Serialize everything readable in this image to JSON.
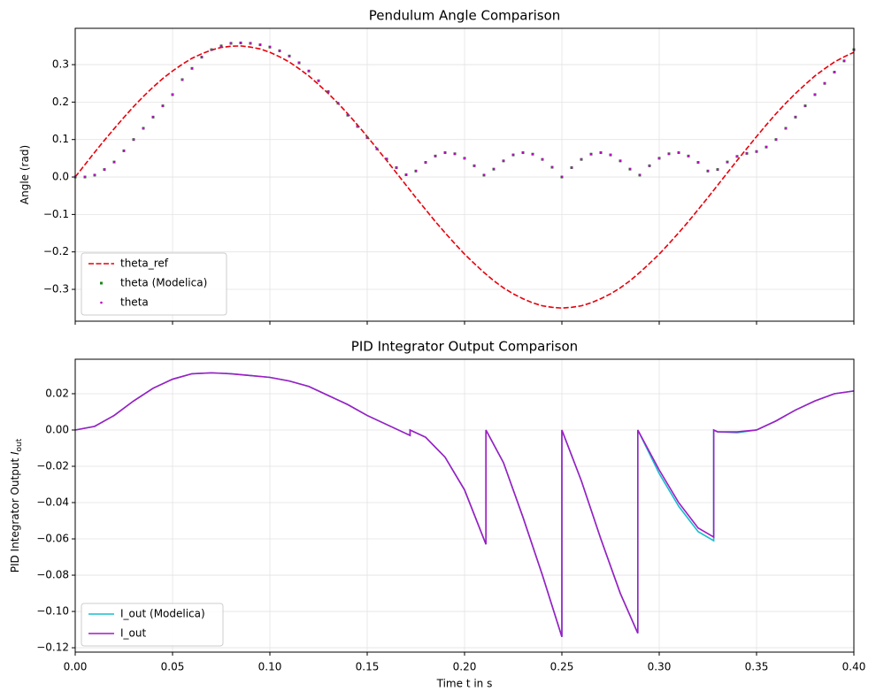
{
  "chart_data": [
    {
      "type": "line",
      "title": "Pendulum Angle Comparison",
      "ylabel": "Angle (rad)",
      "xlim": [
        0,
        0.4
      ],
      "xticks": [
        0,
        0.05,
        0.1,
        0.15,
        0.2,
        0.25,
        0.3,
        0.35,
        0.4
      ],
      "show_xtick_labels": false,
      "ylim": [
        -0.385,
        0.397
      ],
      "yticks": [
        {
          "value": -0.3,
          "label": "−0.3"
        },
        {
          "value": -0.2,
          "label": "−0.2"
        },
        {
          "value": -0.1,
          "label": "−0.1"
        },
        {
          "value": 0,
          "label": "0.0"
        },
        0.1,
        0.2,
        0.3
      ],
      "grid": true,
      "legend": "lower left",
      "x": [
        0,
        0.005,
        0.01,
        0.015,
        0.02,
        0.025,
        0.03,
        0.035,
        0.04,
        0.045,
        0.05,
        0.055,
        0.06,
        0.065,
        0.07,
        0.075,
        0.08,
        0.085,
        0.09,
        0.095,
        0.1,
        0.105,
        0.11,
        0.115,
        0.12,
        0.125,
        0.13,
        0.135,
        0.14,
        0.145,
        0.15,
        0.155,
        0.16,
        0.165,
        0.17,
        0.175,
        0.18,
        0.185,
        0.19,
        0.195,
        0.2,
        0.205,
        0.21,
        0.215,
        0.22,
        0.225,
        0.23,
        0.235,
        0.24,
        0.245,
        0.25,
        0.255,
        0.26,
        0.265,
        0.27,
        0.275,
        0.28,
        0.285,
        0.29,
        0.295,
        0.3,
        0.305,
        0.31,
        0.315,
        0.32,
        0.325,
        0.33,
        0.335,
        0.34,
        0.345,
        0.35,
        0.355,
        0.36,
        0.365,
        0.37,
        0.375,
        0.38,
        0.385,
        0.39,
        0.395,
        0.4
      ],
      "series": [
        {
          "name": "theta_ref",
          "style": "dashed",
          "color": "#e8000b",
          "values": [
            0,
            0.033,
            0.066,
            0.098,
            0.129,
            0.159,
            0.188,
            0.215,
            0.24,
            0.263,
            0.283,
            0.301,
            0.317,
            0.329,
            0.339,
            0.346,
            0.349,
            0.35,
            0.347,
            0.342,
            0.333,
            0.321,
            0.307,
            0.289,
            0.27,
            0.247,
            0.223,
            0.197,
            0.169,
            0.139,
            0.108,
            0.076,
            0.044,
            0.011,
            -0.022,
            -0.055,
            -0.087,
            -0.119,
            -0.149,
            -0.178,
            -0.206,
            -0.231,
            -0.255,
            -0.277,
            -0.296,
            -0.312,
            -0.325,
            -0.336,
            -0.344,
            -0.348,
            -0.35,
            -0.348,
            -0.344,
            -0.336,
            -0.325,
            -0.312,
            -0.296,
            -0.277,
            -0.255,
            -0.231,
            -0.206,
            -0.178,
            -0.149,
            -0.119,
            -0.087,
            -0.055,
            -0.022,
            0.011,
            0.044,
            0.076,
            0.108,
            0.139,
            0.169,
            0.197,
            0.223,
            0.247,
            0.27,
            0.289,
            0.307,
            0.321,
            0.333
          ]
        },
        {
          "name": "theta (Modelica)",
          "style": "square-markers",
          "color": "#1a8a1a",
          "values": [
            0,
            0,
            0.005,
            0.02,
            0.04,
            0.07,
            0.1,
            0.13,
            0.16,
            0.19,
            0.22,
            0.26,
            0.29,
            0.32,
            0.34,
            0.35,
            0.357,
            0.358,
            0.357,
            0.353,
            0.347,
            0.337,
            0.323,
            0.305,
            0.283,
            0.257,
            0.228,
            0.197,
            0.165,
            0.135,
            0.105,
            0.075,
            0.048,
            0.025,
            0.006,
            0.016,
            0.039,
            0.056,
            0.065,
            0.062,
            0.05,
            0.03,
            0.005,
            0.021,
            0.043,
            0.059,
            0.065,
            0.061,
            0.047,
            0.026,
            0,
            0.025,
            0.047,
            0.061,
            0.065,
            0.059,
            0.043,
            0.021,
            0.005,
            0.03,
            0.05,
            0.062,
            0.065,
            0.056,
            0.039,
            0.016,
            0.02,
            0.04,
            0.055,
            0.063,
            0.068,
            0.08,
            0.1,
            0.13,
            0.16,
            0.19,
            0.22,
            0.25,
            0.28,
            0.31,
            0.34
          ]
        },
        {
          "name": "theta",
          "style": "dot-markers",
          "color": "#c000c8",
          "values": [
            0,
            0,
            0.005,
            0.02,
            0.04,
            0.07,
            0.1,
            0.13,
            0.16,
            0.19,
            0.22,
            0.26,
            0.29,
            0.32,
            0.34,
            0.35,
            0.357,
            0.358,
            0.357,
            0.353,
            0.347,
            0.337,
            0.323,
            0.305,
            0.283,
            0.257,
            0.228,
            0.197,
            0.165,
            0.135,
            0.105,
            0.075,
            0.048,
            0.025,
            0.006,
            0.016,
            0.039,
            0.056,
            0.065,
            0.062,
            0.05,
            0.03,
            0.005,
            0.021,
            0.043,
            0.059,
            0.065,
            0.061,
            0.047,
            0.026,
            0,
            0.025,
            0.047,
            0.061,
            0.065,
            0.059,
            0.043,
            0.021,
            0.005,
            0.03,
            0.05,
            0.062,
            0.065,
            0.056,
            0.039,
            0.016,
            0.02,
            0.04,
            0.055,
            0.063,
            0.068,
            0.08,
            0.1,
            0.13,
            0.16,
            0.19,
            0.22,
            0.25,
            0.28,
            0.31,
            0.34
          ]
        }
      ]
    },
    {
      "type": "line",
      "title": "PID Integrator Output Comparison",
      "ylabel": "PID Integrator Output",
      "ylabel_symbol": "I",
      "ylabel_subscript": "out",
      "xlabel": "Time t in s",
      "xlim": [
        0,
        0.4
      ],
      "xticks": [
        {
          "value": 0,
          "label": "0.00"
        },
        0.05,
        {
          "value": 0.1,
          "label": "0.10"
        },
        0.15,
        {
          "value": 0.2,
          "label": "0.20"
        },
        0.25,
        {
          "value": 0.3,
          "label": "0.30"
        },
        0.35,
        {
          "value": 0.4,
          "label": "0.40"
        }
      ],
      "show_xtick_labels": true,
      "ylim": [
        -0.1224,
        0.039
      ],
      "yticks": [
        {
          "value": -0.12,
          "label": "−0.12"
        },
        {
          "value": -0.1,
          "label": "−0.10"
        },
        {
          "value": -0.08,
          "label": "−0.08"
        },
        {
          "value": -0.06,
          "label": "−0.06"
        },
        {
          "value": -0.04,
          "label": "−0.04"
        },
        {
          "value": -0.02,
          "label": "−0.02"
        },
        {
          "value": 0,
          "label": "0.00"
        },
        0.02
      ],
      "grid": true,
      "legend": "lower left",
      "x": [
        0,
        0.01,
        0.02,
        0.03,
        0.04,
        0.05,
        0.06,
        0.07,
        0.08,
        0.09,
        0.1,
        0.11,
        0.12,
        0.13,
        0.14,
        0.15,
        0.16,
        0.17,
        0.172,
        0.172,
        0.18,
        0.19,
        0.2,
        0.211,
        0.211,
        0.22,
        0.23,
        0.24,
        0.25,
        0.25,
        0.26,
        0.27,
        0.28,
        0.289,
        0.289,
        0.3,
        0.31,
        0.32,
        0.328,
        0.328,
        0.33,
        0.34,
        0.35,
        0.36,
        0.37,
        0.38,
        0.39,
        0.4
      ],
      "series": [
        {
          "name": "I_out (Modelica)",
          "style": "solid",
          "color": "#17becf",
          "values": [
            0,
            0.002,
            0.008,
            0.016,
            0.023,
            0.028,
            0.031,
            0.0315,
            0.031,
            0.03,
            0.029,
            0.027,
            0.024,
            0.019,
            0.014,
            0.008,
            0.003,
            -0.002,
            -0.003,
            0,
            -0.004,
            -0.015,
            -0.033,
            -0.063,
            0,
            -0.018,
            -0.048,
            -0.08,
            -0.114,
            0,
            -0.028,
            -0.06,
            -0.09,
            -0.112,
            0,
            -0.024,
            -0.042,
            -0.056,
            -0.061,
            0,
            -0.001,
            -0.0015,
            0,
            0.005,
            0.011,
            0.016,
            0.02,
            0.0215
          ]
        },
        {
          "name": "I_out",
          "style": "solid",
          "color": "#a11cc4",
          "values": [
            0,
            0.002,
            0.008,
            0.016,
            0.023,
            0.028,
            0.031,
            0.0315,
            0.031,
            0.03,
            0.029,
            0.027,
            0.024,
            0.019,
            0.014,
            0.008,
            0.003,
            -0.002,
            -0.003,
            0,
            -0.004,
            -0.015,
            -0.033,
            -0.063,
            0,
            -0.018,
            -0.048,
            -0.08,
            -0.114,
            0,
            -0.028,
            -0.06,
            -0.09,
            -0.112,
            0,
            -0.022,
            -0.04,
            -0.054,
            -0.059,
            0,
            -0.001,
            -0.001,
            0,
            0.005,
            0.011,
            0.016,
            0.02,
            0.0215
          ]
        }
      ]
    }
  ]
}
